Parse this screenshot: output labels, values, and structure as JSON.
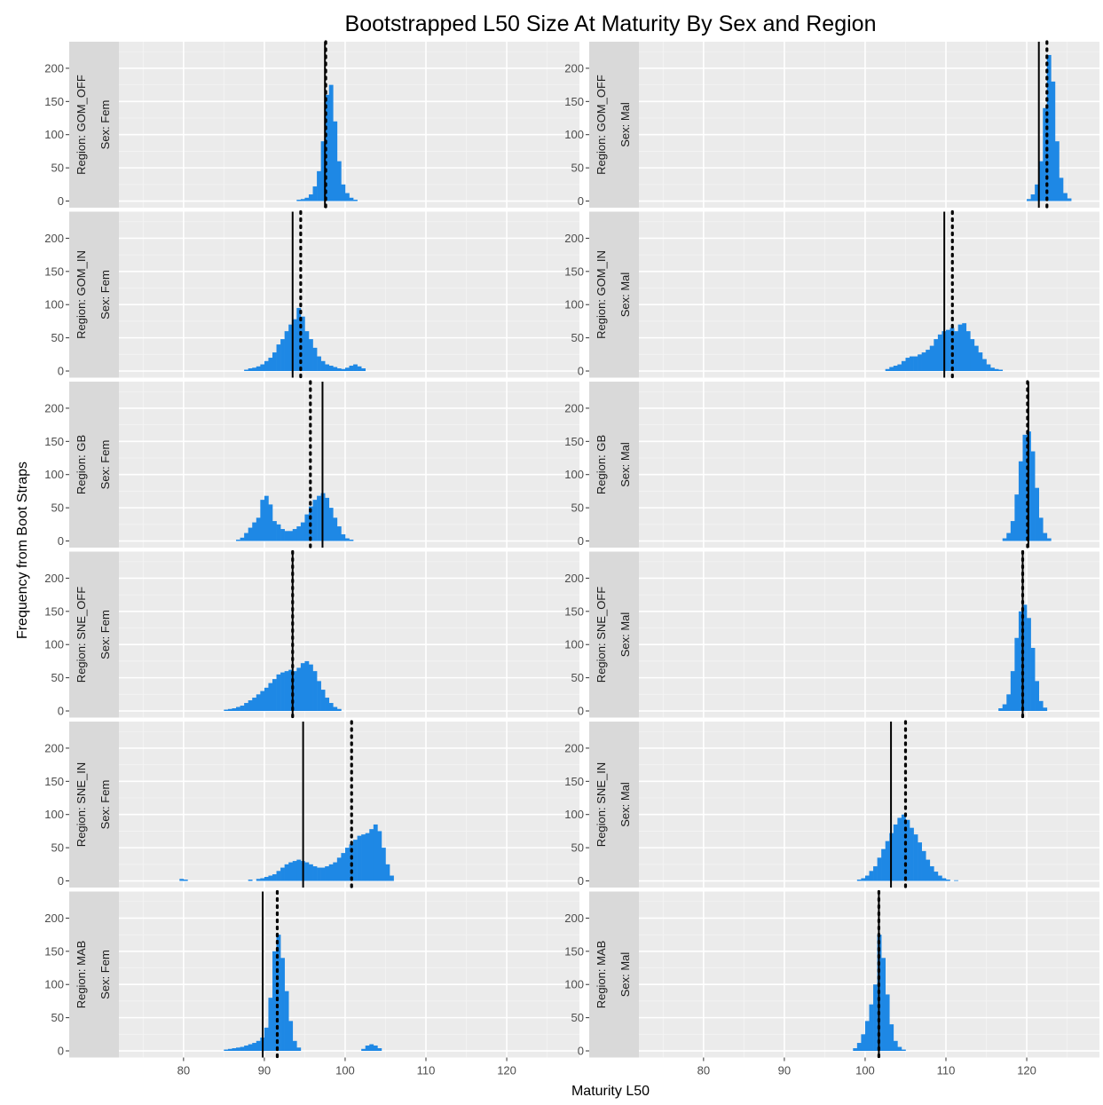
{
  "chart_data": {
    "type": "bar",
    "title": "Bootstrapped L50 Size At Maturity By Sex and Region",
    "xlabel": "Maturity L50",
    "ylabel": "Frequency from Boot Straps",
    "xlim": [
      72,
      129
    ],
    "ylim": [
      -10,
      240
    ],
    "x_ticks": [
      80,
      90,
      100,
      110,
      120
    ],
    "y_ticks": [
      0,
      50,
      100,
      150,
      200
    ],
    "grid": true,
    "bin_width": 0.5,
    "bar_color": "#1e88e5",
    "panel_bg": "#ebebeb",
    "strip_bg": "#d9d9d9",
    "regions": [
      "Region: GOM_OFF",
      "Region: GOM_IN",
      "Region: GB",
      "Region: SNE_OFF",
      "Region: SNE_IN",
      "Region: MAB"
    ],
    "sexes": [
      "Sex: Fem",
      "Sex: Mal"
    ],
    "panels": [
      {
        "region": "Region: GOM_OFF",
        "sex": "Sex: Fem",
        "solid_line": 97.5,
        "dotted_line": 97.6,
        "bins": [
          [
            94.0,
            2
          ],
          [
            94.5,
            3
          ],
          [
            95.0,
            5
          ],
          [
            95.5,
            10
          ],
          [
            96.0,
            22
          ],
          [
            96.5,
            45
          ],
          [
            97.0,
            90
          ],
          [
            97.5,
            160
          ],
          [
            98.0,
            175
          ],
          [
            98.5,
            120
          ],
          [
            99.0,
            60
          ],
          [
            99.5,
            25
          ],
          [
            100.0,
            12
          ],
          [
            100.5,
            5
          ],
          [
            101.0,
            2
          ]
        ]
      },
      {
        "region": "Region: GOM_OFF",
        "sex": "Sex: Mal",
        "solid_line": 121.5,
        "dotted_line": 122.5,
        "bins": [
          [
            120.0,
            3
          ],
          [
            120.5,
            10
          ],
          [
            121.0,
            25
          ],
          [
            121.5,
            60
          ],
          [
            122.0,
            140
          ],
          [
            122.5,
            220
          ],
          [
            123.0,
            180
          ],
          [
            123.5,
            90
          ],
          [
            124.0,
            35
          ],
          [
            124.5,
            12
          ],
          [
            125.0,
            4
          ]
        ]
      },
      {
        "region": "Region: GOM_IN",
        "sex": "Sex: Fem",
        "solid_line": 93.5,
        "dotted_line": 94.5,
        "bins": [
          [
            87.5,
            2
          ],
          [
            88.0,
            4
          ],
          [
            88.5,
            5
          ],
          [
            89.0,
            7
          ],
          [
            89.5,
            10
          ],
          [
            90.0,
            15
          ],
          [
            90.5,
            20
          ],
          [
            91.0,
            28
          ],
          [
            91.5,
            40
          ],
          [
            92.0,
            48
          ],
          [
            92.5,
            60
          ],
          [
            93.0,
            70
          ],
          [
            93.5,
            78
          ],
          [
            94.0,
            95
          ],
          [
            94.5,
            82
          ],
          [
            95.0,
            60
          ],
          [
            95.5,
            48
          ],
          [
            96.0,
            35
          ],
          [
            96.5,
            22
          ],
          [
            97.0,
            15
          ],
          [
            97.5,
            10
          ],
          [
            98.0,
            8
          ],
          [
            98.5,
            6
          ],
          [
            99.0,
            4
          ],
          [
            99.5,
            3
          ],
          [
            100.0,
            5
          ],
          [
            100.5,
            8
          ],
          [
            101.0,
            10
          ],
          [
            101.5,
            7
          ],
          [
            102.0,
            4
          ]
        ]
      },
      {
        "region": "Region: GOM_IN",
        "sex": "Sex: Mal",
        "solid_line": 109.8,
        "dotted_line": 110.8,
        "bins": [
          [
            102.5,
            3
          ],
          [
            103.0,
            6
          ],
          [
            103.5,
            8
          ],
          [
            104.0,
            10
          ],
          [
            104.5,
            15
          ],
          [
            105.0,
            20
          ],
          [
            105.5,
            22
          ],
          [
            106.0,
            22
          ],
          [
            106.5,
            25
          ],
          [
            107.0,
            28
          ],
          [
            107.5,
            32
          ],
          [
            108.0,
            38
          ],
          [
            108.5,
            48
          ],
          [
            109.0,
            55
          ],
          [
            109.5,
            60
          ],
          [
            110.0,
            62
          ],
          [
            110.5,
            65
          ],
          [
            111.0,
            60
          ],
          [
            111.5,
            70
          ],
          [
            112.0,
            72
          ],
          [
            112.5,
            60
          ],
          [
            113.0,
            48
          ],
          [
            113.5,
            38
          ],
          [
            114.0,
            28
          ],
          [
            114.5,
            18
          ],
          [
            115.0,
            10
          ],
          [
            115.5,
            5
          ],
          [
            116.0,
            3
          ],
          [
            116.5,
            2
          ]
        ]
      },
      {
        "region": "Region: GB",
        "sex": "Sex: Fem",
        "solid_line": 97.2,
        "dotted_line": 95.7,
        "bins": [
          [
            86.5,
            2
          ],
          [
            87.0,
            5
          ],
          [
            87.5,
            12
          ],
          [
            88.0,
            20
          ],
          [
            88.5,
            28
          ],
          [
            89.0,
            35
          ],
          [
            89.5,
            62
          ],
          [
            90.0,
            68
          ],
          [
            90.5,
            55
          ],
          [
            91.0,
            30
          ],
          [
            91.5,
            25
          ],
          [
            92.0,
            18
          ],
          [
            92.5,
            15
          ],
          [
            93.0,
            15
          ],
          [
            93.5,
            18
          ],
          [
            94.0,
            22
          ],
          [
            94.5,
            28
          ],
          [
            95.0,
            40
          ],
          [
            95.5,
            52
          ],
          [
            96.0,
            62
          ],
          [
            96.5,
            68
          ],
          [
            97.0,
            72
          ],
          [
            97.5,
            65
          ],
          [
            98.0,
            50
          ],
          [
            98.5,
            35
          ],
          [
            99.0,
            22
          ],
          [
            99.5,
            10
          ],
          [
            100.0,
            4
          ],
          [
            100.5,
            2
          ]
        ]
      },
      {
        "region": "Region: GB",
        "sex": "Sex: Mal",
        "solid_line": 120.2,
        "dotted_line": 120.1,
        "bins": [
          [
            117.0,
            4
          ],
          [
            117.5,
            12
          ],
          [
            118.0,
            30
          ],
          [
            118.5,
            70
          ],
          [
            119.0,
            120
          ],
          [
            119.5,
            160
          ],
          [
            120.0,
            165
          ],
          [
            120.5,
            135
          ],
          [
            121.0,
            80
          ],
          [
            121.5,
            35
          ],
          [
            122.0,
            12
          ],
          [
            122.5,
            4
          ]
        ]
      },
      {
        "region": "Region: SNE_OFF",
        "sex": "Sex: Fem",
        "solid_line": 93.5,
        "dotted_line": 93.5,
        "bins": [
          [
            85.0,
            2
          ],
          [
            85.5,
            3
          ],
          [
            86.0,
            4
          ],
          [
            86.5,
            6
          ],
          [
            87.0,
            8
          ],
          [
            87.5,
            12
          ],
          [
            88.0,
            16
          ],
          [
            88.5,
            20
          ],
          [
            89.0,
            25
          ],
          [
            89.5,
            30
          ],
          [
            90.0,
            35
          ],
          [
            90.5,
            42
          ],
          [
            91.0,
            48
          ],
          [
            91.5,
            55
          ],
          [
            92.0,
            58
          ],
          [
            92.5,
            60
          ],
          [
            93.0,
            62
          ],
          [
            93.5,
            60
          ],
          [
            94.0,
            65
          ],
          [
            94.5,
            72
          ],
          [
            95.0,
            75
          ],
          [
            95.5,
            70
          ],
          [
            96.0,
            60
          ],
          [
            96.5,
            45
          ],
          [
            97.0,
            32
          ],
          [
            97.5,
            20
          ],
          [
            98.0,
            12
          ],
          [
            98.5,
            6
          ],
          [
            99.0,
            3
          ]
        ]
      },
      {
        "region": "Region: SNE_OFF",
        "sex": "Sex: Mal",
        "solid_line": 119.5,
        "dotted_line": 119.5,
        "bins": [
          [
            116.5,
            4
          ],
          [
            117.0,
            10
          ],
          [
            117.5,
            25
          ],
          [
            118.0,
            60
          ],
          [
            118.5,
            110
          ],
          [
            119.0,
            150
          ],
          [
            119.5,
            160
          ],
          [
            120.0,
            140
          ],
          [
            120.5,
            95
          ],
          [
            121.0,
            45
          ],
          [
            121.5,
            15
          ],
          [
            122.0,
            5
          ]
        ]
      },
      {
        "region": "Region: SNE_IN",
        "sex": "Sex: Fem",
        "solid_line": 94.8,
        "dotted_line": 100.8,
        "bins": [
          [
            79.5,
            3
          ],
          [
            80.0,
            2
          ],
          [
            88.0,
            2
          ],
          [
            89.0,
            3
          ],
          [
            89.5,
            4
          ],
          [
            90.0,
            6
          ],
          [
            90.5,
            8
          ],
          [
            91.0,
            10
          ],
          [
            91.5,
            15
          ],
          [
            92.0,
            20
          ],
          [
            92.5,
            25
          ],
          [
            93.0,
            28
          ],
          [
            93.5,
            30
          ],
          [
            94.0,
            32
          ],
          [
            94.5,
            30
          ],
          [
            95.0,
            28
          ],
          [
            95.5,
            25
          ],
          [
            96.0,
            22
          ],
          [
            96.5,
            20
          ],
          [
            97.0,
            20
          ],
          [
            97.5,
            22
          ],
          [
            98.0,
            25
          ],
          [
            98.5,
            28
          ],
          [
            99.0,
            35
          ],
          [
            99.5,
            42
          ],
          [
            100.0,
            50
          ],
          [
            100.5,
            55
          ],
          [
            101.0,
            62
          ],
          [
            101.5,
            68
          ],
          [
            102.0,
            70
          ],
          [
            102.5,
            72
          ],
          [
            103.0,
            78
          ],
          [
            103.5,
            85
          ],
          [
            104.0,
            75
          ],
          [
            104.5,
            50
          ],
          [
            105.0,
            25
          ],
          [
            105.5,
            8
          ]
        ]
      },
      {
        "region": "Region: SNE_IN",
        "sex": "Sex: Mal",
        "solid_line": 103.2,
        "dotted_line": 105.0,
        "bins": [
          [
            99.0,
            2
          ],
          [
            99.5,
            4
          ],
          [
            100.0,
            8
          ],
          [
            100.5,
            15
          ],
          [
            101.0,
            22
          ],
          [
            101.5,
            35
          ],
          [
            102.0,
            48
          ],
          [
            102.5,
            60
          ],
          [
            103.0,
            72
          ],
          [
            103.5,
            85
          ],
          [
            104.0,
            95
          ],
          [
            104.5,
            100
          ],
          [
            105.0,
            92
          ],
          [
            105.5,
            80
          ],
          [
            106.0,
            70
          ],
          [
            106.5,
            58
          ],
          [
            107.0,
            45
          ],
          [
            107.5,
            32
          ],
          [
            108.0,
            22
          ],
          [
            108.5,
            14
          ],
          [
            109.0,
            8
          ],
          [
            109.5,
            4
          ],
          [
            110.0,
            2
          ],
          [
            111.0,
            1
          ]
        ]
      },
      {
        "region": "Region: MAB",
        "sex": "Sex: Fem",
        "solid_line": 89.8,
        "dotted_line": 91.6,
        "bins": [
          [
            85.0,
            2
          ],
          [
            85.5,
            3
          ],
          [
            86.0,
            4
          ],
          [
            86.5,
            5
          ],
          [
            87.0,
            6
          ],
          [
            87.5,
            8
          ],
          [
            88.0,
            10
          ],
          [
            88.5,
            12
          ],
          [
            89.0,
            15
          ],
          [
            89.5,
            20
          ],
          [
            90.0,
            35
          ],
          [
            90.5,
            80
          ],
          [
            91.0,
            150
          ],
          [
            91.5,
            175
          ],
          [
            92.0,
            140
          ],
          [
            92.5,
            90
          ],
          [
            93.0,
            45
          ],
          [
            93.5,
            15
          ],
          [
            94.0,
            5
          ],
          [
            102.0,
            3
          ],
          [
            102.5,
            8
          ],
          [
            103.0,
            10
          ],
          [
            103.5,
            8
          ],
          [
            104.0,
            4
          ]
        ]
      },
      {
        "region": "Region: MAB",
        "sex": "Sex: Mal",
        "solid_line": 101.7,
        "dotted_line": 101.7,
        "bins": [
          [
            98.5,
            4
          ],
          [
            99.0,
            12
          ],
          [
            99.5,
            25
          ],
          [
            100.0,
            45
          ],
          [
            100.5,
            70
          ],
          [
            101.0,
            100
          ],
          [
            101.5,
            175
          ],
          [
            102.0,
            140
          ],
          [
            102.5,
            85
          ],
          [
            103.0,
            40
          ],
          [
            103.5,
            15
          ],
          [
            104.0,
            6
          ],
          [
            104.5,
            2
          ]
        ]
      }
    ]
  }
}
